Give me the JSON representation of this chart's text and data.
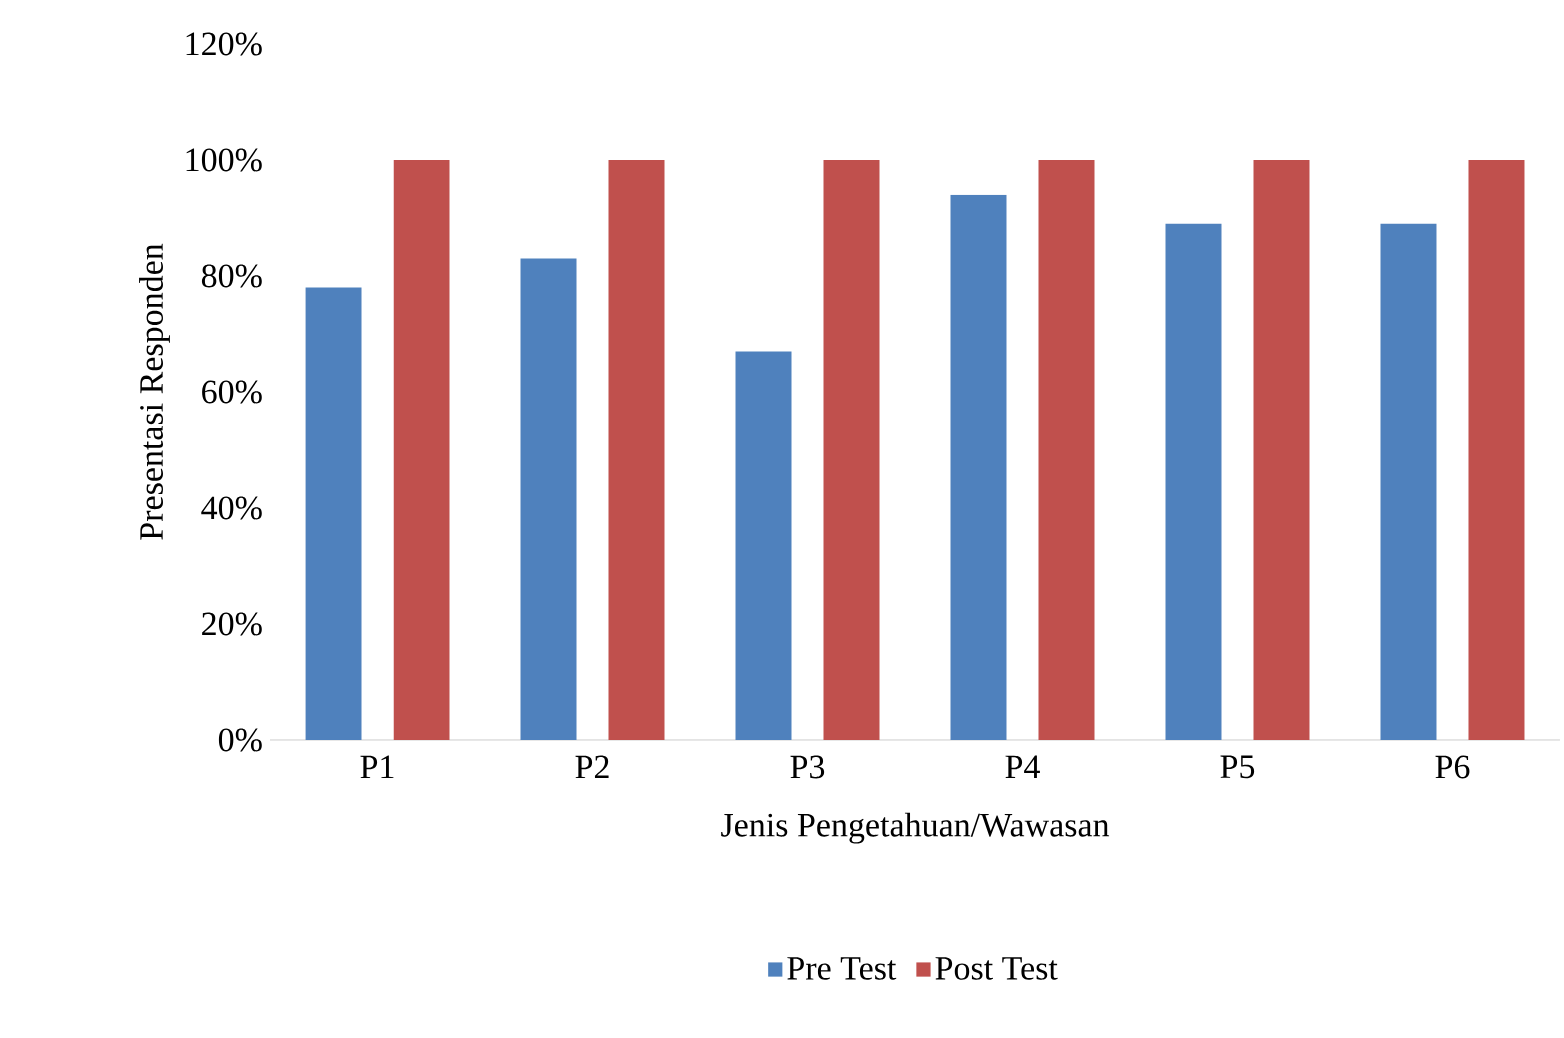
{
  "chart_data": {
    "type": "bar",
    "xlabel": "Jenis Pengetahuan/Wawasan",
    "ylabel": "Presentasi Responden",
    "categories": [
      "P1",
      "P2",
      "P3",
      "P4",
      "P5",
      "P6"
    ],
    "series": [
      {
        "name": "Pre Test",
        "color": "#4f81bd",
        "values": [
          78,
          83,
          67,
          94,
          89,
          89
        ]
      },
      {
        "name": "Post Test",
        "color": "#c0504d",
        "values": [
          100,
          100,
          100,
          100,
          100,
          100
        ]
      }
    ],
    "ylim": [
      0,
      120
    ],
    "yticks": [
      {
        "value": 0,
        "label": "0%"
      },
      {
        "value": 20,
        "label": "20%"
      },
      {
        "value": 40,
        "label": "40%"
      },
      {
        "value": 60,
        "label": "60%"
      },
      {
        "value": 80,
        "label": "80%"
      },
      {
        "value": 100,
        "label": "100%"
      },
      {
        "value": 120,
        "label": "120%"
      }
    ],
    "grid": false,
    "legend": "bottom"
  }
}
